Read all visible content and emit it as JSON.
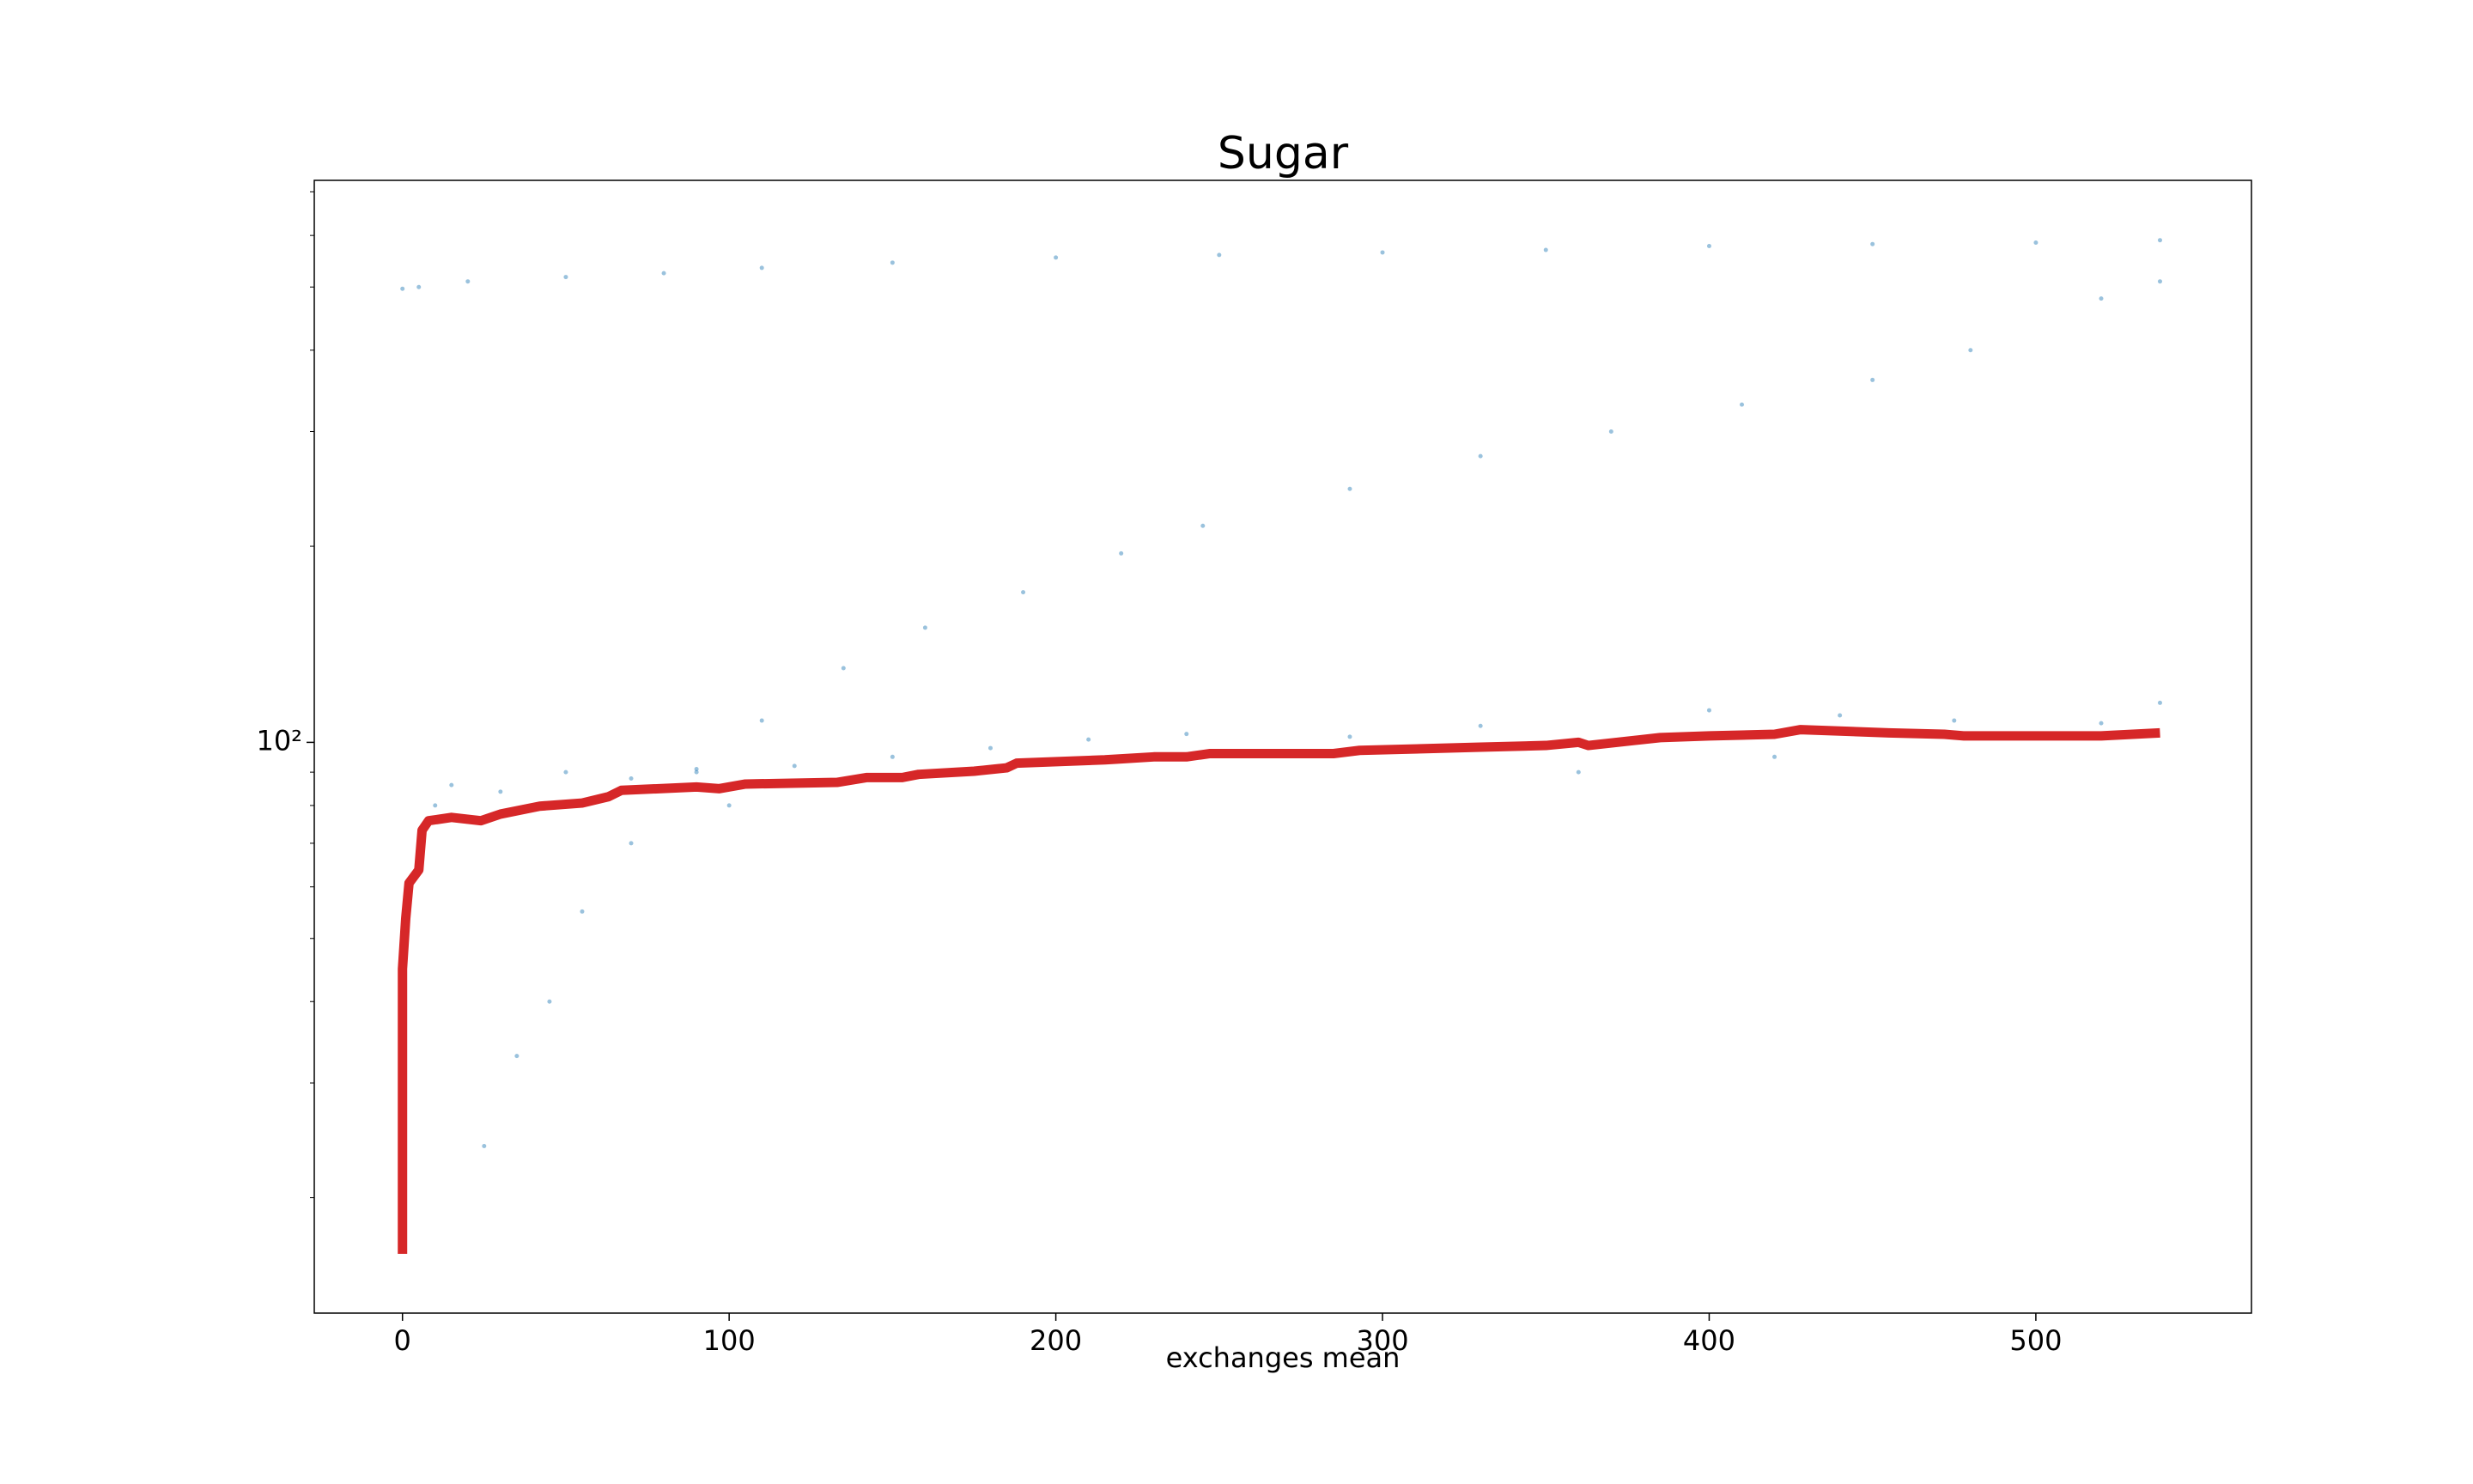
{
  "chart_data": {
    "type": "line",
    "title": "Sugar",
    "x_label": "exchanges mean",
    "xlim": [
      -27,
      566
    ],
    "ylim": [
      13.3,
      729
    ],
    "yscale": "log",
    "xticks": [
      0,
      100,
      200,
      300,
      400,
      500
    ],
    "yticks": [
      {
        "value": 100,
        "label": "10²"
      }
    ],
    "minor_yticks": [
      20,
      30,
      40,
      50,
      60,
      70,
      80,
      90,
      200,
      300,
      400,
      500,
      600,
      700
    ],
    "scatter": {
      "color": "#1f77b4",
      "x": [
        0,
        5,
        20,
        50,
        80,
        110,
        150,
        200,
        250,
        300,
        350,
        400,
        450,
        500,
        538,
        25,
        35,
        45,
        55,
        70,
        90,
        110,
        135,
        160,
        190,
        220,
        245,
        290,
        330,
        370,
        410,
        450,
        480,
        520,
        538,
        10,
        15,
        30,
        50,
        70,
        90,
        100,
        120,
        150,
        180,
        210,
        240,
        290,
        330,
        360,
        400,
        420,
        440,
        475,
        520,
        538
      ],
      "values": [
        497,
        500,
        510,
        518,
        525,
        535,
        545,
        555,
        560,
        565,
        570,
        578,
        582,
        585,
        590,
        24,
        33,
        40,
        55,
        70,
        90,
        108,
        130,
        150,
        170,
        195,
        215,
        245,
        275,
        300,
        330,
        360,
        400,
        480,
        510,
        80,
        86,
        84,
        90,
        88,
        91,
        80,
        92,
        95,
        98,
        101,
        103,
        102,
        106,
        90,
        112,
        95,
        110,
        108,
        107,
        115
      ]
    },
    "series": [
      {
        "color": "#d62728",
        "x": [
          0,
          0,
          1,
          2,
          5,
          6,
          8,
          15,
          24,
          30,
          42,
          55,
          63,
          67,
          90,
          97,
          105,
          133,
          142,
          153,
          158,
          175,
          185,
          188,
          215,
          230,
          240,
          247,
          285,
          293,
          330,
          350,
          360,
          363,
          385,
          400,
          420,
          428,
          455,
          472,
          478,
          520,
          538
        ],
        "values": [
          16.4,
          44.9,
          53.7,
          60.8,
          63.7,
          73.3,
          75.8,
          76.7,
          75.8,
          77.6,
          79.8,
          80.7,
          82.5,
          84.4,
          85.4,
          84.9,
          86.3,
          86.8,
          88.3,
          88.3,
          89.3,
          90.3,
          91.4,
          92.9,
          94.0,
          95.0,
          95.0,
          96.1,
          96.1,
          97.2,
          98.3,
          98.9,
          100,
          98.9,
          101.7,
          102.3,
          102.9,
          104.6,
          103.4,
          102.9,
          102.3,
          102.3,
          103.4
        ]
      }
    ]
  }
}
